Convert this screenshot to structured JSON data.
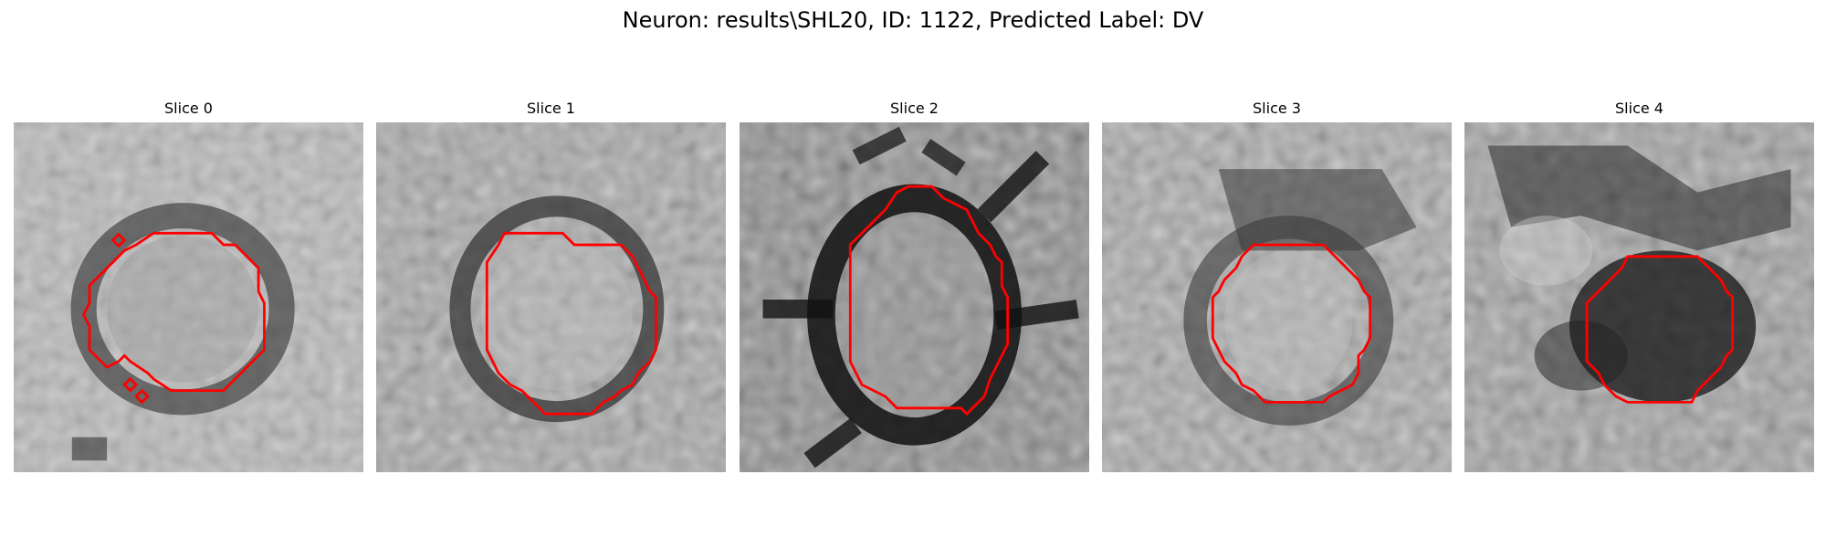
{
  "figure": {
    "title": "Neuron: results\\SHL20, ID: 1122, Predicted Label: DV"
  },
  "panels": [
    {
      "title": "Slice 0"
    },
    {
      "title": "Slice 1"
    },
    {
      "title": "Slice 2"
    },
    {
      "title": "Slice 3"
    },
    {
      "title": "Slice 4"
    }
  ],
  "colors": {
    "contour": "#ff0000",
    "background": "#ffffff"
  }
}
